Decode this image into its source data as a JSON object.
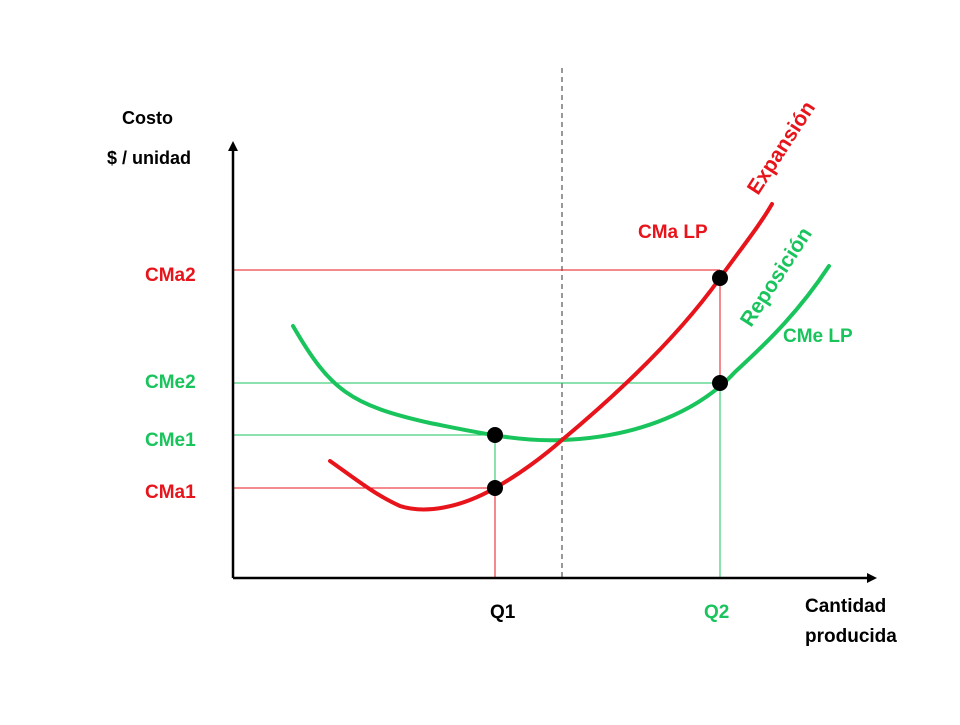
{
  "axis": {
    "y_label_line1": "Costo",
    "y_label_line2": "$ / unidad",
    "x_label_line1": "Cantidad",
    "x_label_line2": "producida"
  },
  "ticks": {
    "y": [
      "CMa2",
      "CMe2",
      "CMe1",
      "CMa1"
    ],
    "x": [
      "Q1",
      "Q2"
    ]
  },
  "curves": {
    "marginal": {
      "label": "CMa LP",
      "color": "#e8141b"
    },
    "average": {
      "label": "CMe LP",
      "color": "#19c45c"
    }
  },
  "zones": {
    "expansion": "Expansión",
    "replacement": "Reposición"
  },
  "colors": {
    "axis": "#000000",
    "divider": "#555555",
    "point": "#000000"
  }
}
